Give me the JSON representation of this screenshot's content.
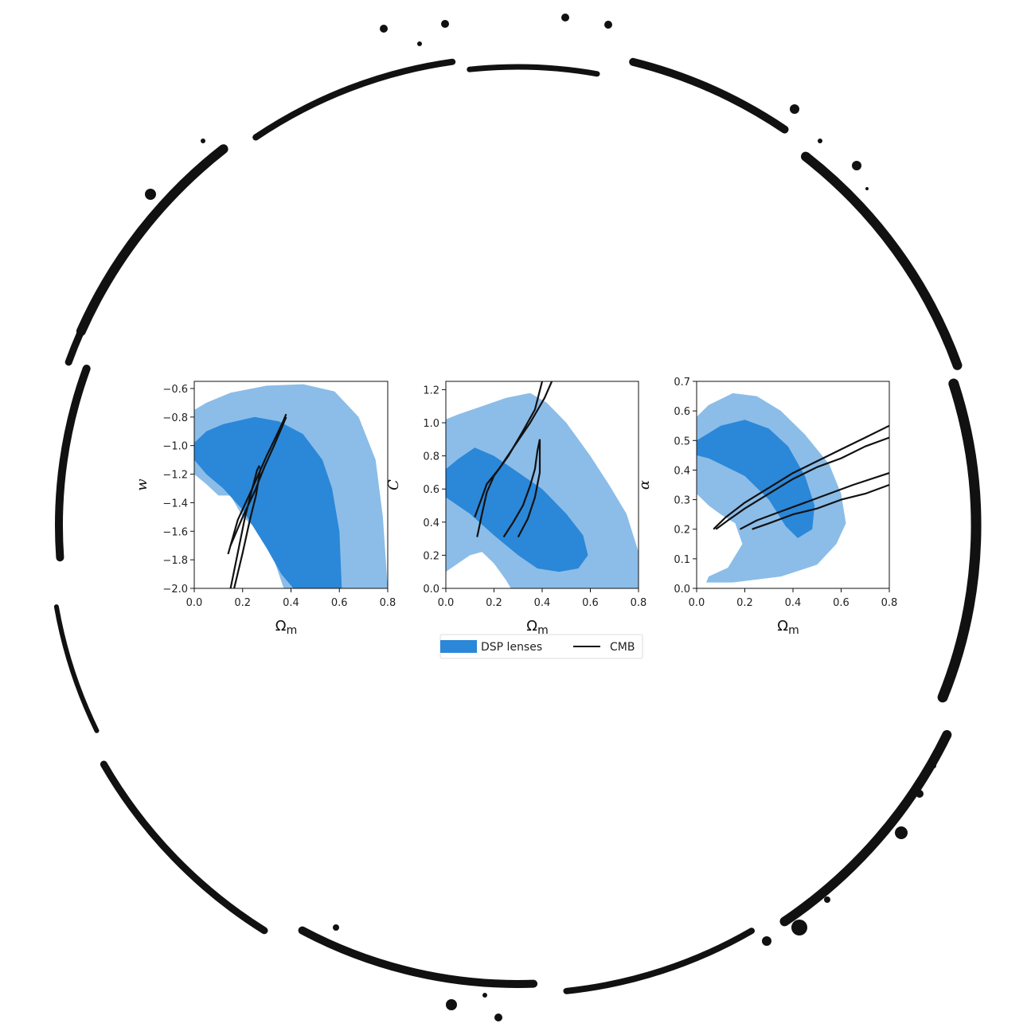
{
  "colors": {
    "inner_contour": "#2b87d8",
    "outer_contour": "#8bbde8",
    "cmb_line": "#111111",
    "ring": "#111111"
  },
  "legend": {
    "dsp_label": "DSP lenses",
    "cmb_label": "CMB",
    "placement": "bottom-center"
  },
  "chart_data": [
    {
      "type": "contour",
      "xlabel": "Ω",
      "xlabel_sub": "m",
      "ylabel": "w",
      "xlim": [
        0.0,
        0.8
      ],
      "ylim": [
        -2.0,
        -0.55
      ],
      "xticks": [
        "0.0",
        "0.2",
        "0.4",
        "0.6",
        "0.8"
      ],
      "yticks": [
        "−2.0",
        "−1.8",
        "−1.6",
        "−1.4",
        "−1.2",
        "−1.0",
        "−0.8",
        "−0.6"
      ],
      "ytick_values": [
        -2.0,
        -1.8,
        -1.6,
        -1.4,
        -1.2,
        -1.0,
        -0.8,
        -0.6
      ],
      "series": [
        {
          "name": "DSP lenses",
          "level": "outer",
          "points": [
            [
              0.0,
              -1.2
            ],
            [
              0.05,
              -1.27
            ],
            [
              0.1,
              -1.35
            ],
            [
              0.15,
              -1.35
            ],
            [
              0.2,
              -1.5
            ],
            [
              0.27,
              -1.6
            ],
            [
              0.33,
              -1.8
            ],
            [
              0.37,
              -2.0
            ],
            [
              0.8,
              -2.0
            ],
            [
              0.78,
              -1.5
            ],
            [
              0.75,
              -1.1
            ],
            [
              0.68,
              -0.8
            ],
            [
              0.58,
              -0.62
            ],
            [
              0.45,
              -0.57
            ],
            [
              0.3,
              -0.58
            ],
            [
              0.15,
              -0.63
            ],
            [
              0.05,
              -0.7
            ],
            [
              0.0,
              -0.75
            ]
          ]
        },
        {
          "name": "DSP lenses",
          "level": "inner",
          "points": [
            [
              0.0,
              -0.98
            ],
            [
              0.0,
              -1.1
            ],
            [
              0.05,
              -1.2
            ],
            [
              0.12,
              -1.3
            ],
            [
              0.2,
              -1.45
            ],
            [
              0.3,
              -1.72
            ],
            [
              0.36,
              -1.9
            ],
            [
              0.41,
              -2.0
            ],
            [
              0.61,
              -2.0
            ],
            [
              0.6,
              -1.6
            ],
            [
              0.57,
              -1.3
            ],
            [
              0.53,
              -1.1
            ],
            [
              0.45,
              -0.92
            ],
            [
              0.35,
              -0.83
            ],
            [
              0.25,
              -0.8
            ],
            [
              0.12,
              -0.85
            ],
            [
              0.05,
              -0.9
            ]
          ]
        },
        {
          "name": "CMB",
          "level": "line",
          "points": [
            [
              0.14,
              -1.76
            ],
            [
              0.18,
              -1.52
            ],
            [
              0.24,
              -1.3
            ],
            [
              0.3,
              -1.07
            ],
            [
              0.34,
              -0.93
            ],
            [
              0.37,
              -0.82
            ],
            [
              0.38,
              -0.78
            ]
          ]
        },
        {
          "name": "CMB",
          "level": "line",
          "points": [
            [
              0.15,
              -1.7
            ],
            [
              0.2,
              -1.5
            ],
            [
              0.25,
              -1.32
            ],
            [
              0.29,
              -1.15
            ],
            [
              0.33,
              -1.0
            ],
            [
              0.36,
              -0.88
            ],
            [
              0.38,
              -0.8
            ]
          ]
        },
        {
          "name": "CMB",
          "level": "line",
          "points": [
            [
              0.15,
              -2.0
            ],
            [
              0.18,
              -1.75
            ],
            [
              0.21,
              -1.5
            ],
            [
              0.24,
              -1.3
            ],
            [
              0.26,
              -1.17
            ],
            [
              0.27,
              -1.14
            ]
          ]
        },
        {
          "name": "CMB",
          "level": "line",
          "points": [
            [
              0.165,
              -2.0
            ],
            [
              0.2,
              -1.75
            ],
            [
              0.23,
              -1.52
            ],
            [
              0.255,
              -1.35
            ],
            [
              0.27,
              -1.2
            ],
            [
              0.275,
              -1.15
            ]
          ]
        }
      ]
    },
    {
      "type": "contour",
      "xlabel": "Ω",
      "xlabel_sub": "m",
      "ylabel": "C",
      "xlim": [
        0.0,
        0.8
      ],
      "ylim": [
        0.0,
        1.25
      ],
      "xticks": [
        "0.0",
        "0.2",
        "0.4",
        "0.6",
        "0.8"
      ],
      "yticks": [
        "0.0",
        "0.2",
        "0.4",
        "0.6",
        "0.8",
        "1.0",
        "1.2"
      ],
      "ytick_values": [
        0.0,
        0.2,
        0.4,
        0.6,
        0.8,
        1.0,
        1.2
      ],
      "series": [
        {
          "name": "DSP lenses",
          "level": "outer",
          "points": [
            [
              0.0,
              0.1
            ],
            [
              0.05,
              0.15
            ],
            [
              0.1,
              0.2
            ],
            [
              0.15,
              0.22
            ],
            [
              0.2,
              0.15
            ],
            [
              0.25,
              0.05
            ],
            [
              0.27,
              0.0
            ],
            [
              0.8,
              0.0
            ],
            [
              0.8,
              0.22
            ],
            [
              0.75,
              0.45
            ],
            [
              0.68,
              0.62
            ],
            [
              0.6,
              0.8
            ],
            [
              0.5,
              1.0
            ],
            [
              0.42,
              1.12
            ],
            [
              0.35,
              1.18
            ],
            [
              0.25,
              1.15
            ],
            [
              0.15,
              1.1
            ],
            [
              0.05,
              1.05
            ],
            [
              0.0,
              1.02
            ]
          ]
        },
        {
          "name": "DSP lenses",
          "level": "inner",
          "points": [
            [
              0.0,
              0.72
            ],
            [
              0.05,
              0.78
            ],
            [
              0.12,
              0.85
            ],
            [
              0.2,
              0.8
            ],
            [
              0.3,
              0.7
            ],
            [
              0.4,
              0.6
            ],
            [
              0.5,
              0.45
            ],
            [
              0.57,
              0.32
            ],
            [
              0.59,
              0.2
            ],
            [
              0.55,
              0.12
            ],
            [
              0.47,
              0.1
            ],
            [
              0.38,
              0.12
            ],
            [
              0.3,
              0.2
            ],
            [
              0.2,
              0.32
            ],
            [
              0.1,
              0.45
            ],
            [
              0.0,
              0.55
            ]
          ]
        },
        {
          "name": "CMB",
          "level": "line",
          "points": [
            [
              0.13,
              0.31
            ],
            [
              0.15,
              0.45
            ],
            [
              0.17,
              0.58
            ],
            [
              0.2,
              0.68
            ],
            [
              0.26,
              0.8
            ],
            [
              0.32,
              0.95
            ],
            [
              0.37,
              1.08
            ],
            [
              0.4,
              1.25
            ]
          ]
        },
        {
          "name": "CMB",
          "level": "line",
          "points": [
            [
              0.12,
              0.43
            ],
            [
              0.15,
              0.55
            ],
            [
              0.17,
              0.63
            ],
            [
              0.22,
              0.72
            ],
            [
              0.28,
              0.85
            ],
            [
              0.35,
              1.0
            ],
            [
              0.41,
              1.15
            ],
            [
              0.44,
              1.25
            ]
          ]
        },
        {
          "name": "CMB",
          "level": "line",
          "points": [
            [
              0.24,
              0.31
            ],
            [
              0.28,
              0.4
            ],
            [
              0.32,
              0.5
            ],
            [
              0.35,
              0.62
            ],
            [
              0.37,
              0.72
            ],
            [
              0.38,
              0.83
            ],
            [
              0.39,
              0.9
            ]
          ]
        },
        {
          "name": "CMB",
          "level": "line",
          "points": [
            [
              0.3,
              0.31
            ],
            [
              0.34,
              0.42
            ],
            [
              0.37,
              0.55
            ],
            [
              0.39,
              0.7
            ],
            [
              0.39,
              0.9
            ]
          ]
        }
      ]
    },
    {
      "type": "contour",
      "xlabel": "Ω",
      "xlabel_sub": "m",
      "ylabel": "α",
      "xlim": [
        0.0,
        0.8
      ],
      "ylim": [
        0.0,
        0.7
      ],
      "xticks": [
        "0.0",
        "0.2",
        "0.4",
        "0.6",
        "0.8"
      ],
      "yticks": [
        "0.0",
        "0.1",
        "0.2",
        "0.3",
        "0.4",
        "0.5",
        "0.6",
        "0.7"
      ],
      "ytick_values": [
        0.0,
        0.1,
        0.2,
        0.3,
        0.4,
        0.5,
        0.6,
        0.7
      ],
      "series": [
        {
          "name": "DSP lenses",
          "level": "outer",
          "points": [
            [
              0.0,
              0.32
            ],
            [
              0.05,
              0.28
            ],
            [
              0.1,
              0.25
            ],
            [
              0.16,
              0.22
            ],
            [
              0.19,
              0.15
            ],
            [
              0.13,
              0.07
            ],
            [
              0.05,
              0.04
            ],
            [
              0.04,
              0.02
            ],
            [
              0.15,
              0.02
            ],
            [
              0.35,
              0.04
            ],
            [
              0.5,
              0.08
            ],
            [
              0.58,
              0.15
            ],
            [
              0.62,
              0.22
            ],
            [
              0.6,
              0.32
            ],
            [
              0.55,
              0.42
            ],
            [
              0.45,
              0.52
            ],
            [
              0.35,
              0.6
            ],
            [
              0.25,
              0.65
            ],
            [
              0.15,
              0.66
            ],
            [
              0.05,
              0.62
            ],
            [
              0.0,
              0.58
            ]
          ]
        },
        {
          "name": "DSP lenses",
          "level": "inner",
          "points": [
            [
              0.0,
              0.45
            ],
            [
              0.05,
              0.44
            ],
            [
              0.1,
              0.42
            ],
            [
              0.2,
              0.38
            ],
            [
              0.3,
              0.3
            ],
            [
              0.37,
              0.21
            ],
            [
              0.42,
              0.17
            ],
            [
              0.48,
              0.2
            ],
            [
              0.49,
              0.28
            ],
            [
              0.45,
              0.38
            ],
            [
              0.38,
              0.48
            ],
            [
              0.3,
              0.54
            ],
            [
              0.2,
              0.57
            ],
            [
              0.1,
              0.55
            ],
            [
              0.0,
              0.5
            ]
          ]
        },
        {
          "name": "CMB",
          "level": "line",
          "points": [
            [
              0.07,
              0.2
            ],
            [
              0.12,
              0.24
            ],
            [
              0.2,
              0.29
            ],
            [
              0.3,
              0.34
            ],
            [
              0.4,
              0.39
            ],
            [
              0.5,
              0.43
            ],
            [
              0.6,
              0.47
            ],
            [
              0.7,
              0.51
            ],
            [
              0.8,
              0.55
            ]
          ]
        },
        {
          "name": "CMB",
          "level": "line",
          "points": [
            [
              0.08,
              0.2
            ],
            [
              0.13,
              0.23
            ],
            [
              0.2,
              0.27
            ],
            [
              0.3,
              0.32
            ],
            [
              0.4,
              0.37
            ],
            [
              0.5,
              0.41
            ],
            [
              0.6,
              0.44
            ],
            [
              0.7,
              0.48
            ],
            [
              0.8,
              0.51
            ]
          ]
        },
        {
          "name": "CMB",
          "level": "line",
          "points": [
            [
              0.18,
              0.2
            ],
            [
              0.25,
              0.23
            ],
            [
              0.35,
              0.26
            ],
            [
              0.45,
              0.29
            ],
            [
              0.55,
              0.32
            ],
            [
              0.65,
              0.35
            ],
            [
              0.8,
              0.39
            ]
          ]
        },
        {
          "name": "CMB",
          "level": "line",
          "points": [
            [
              0.23,
              0.2
            ],
            [
              0.3,
              0.22
            ],
            [
              0.4,
              0.25
            ],
            [
              0.5,
              0.27
            ],
            [
              0.6,
              0.3
            ],
            [
              0.7,
              0.32
            ],
            [
              0.8,
              0.35
            ]
          ]
        }
      ]
    }
  ]
}
